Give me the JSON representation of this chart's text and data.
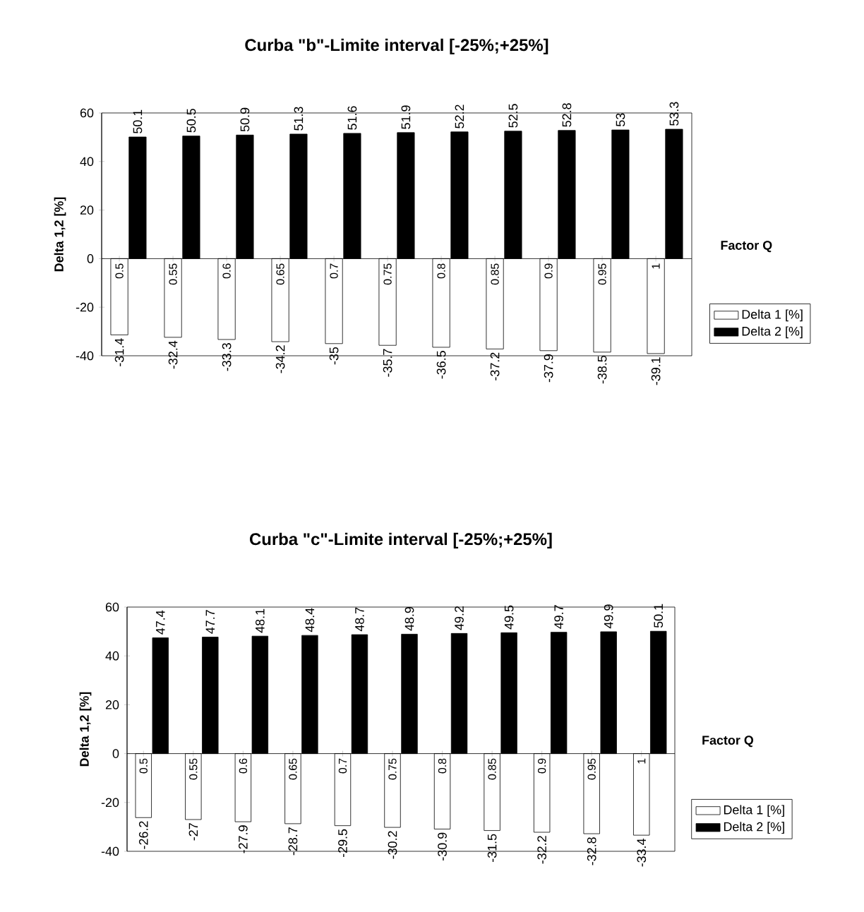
{
  "chart_data": [
    {
      "type": "bar",
      "title": "Curba \"b\"-Limite interval [-25%;+25%]",
      "xlabel": "Factor Q",
      "ylabel": "Delta 1,2 [%]",
      "categories": [
        "0.5",
        "0.55",
        "0.6",
        "0.65",
        "0.7",
        "0.75",
        "0.8",
        "0.85",
        "0.9",
        "0.95",
        "1"
      ],
      "series": [
        {
          "name": "Delta 1 [%]",
          "color": "#ffffff",
          "values": [
            -31.4,
            -32.4,
            -33.3,
            -34.2,
            -35,
            -35.7,
            -36.5,
            -37.2,
            -37.9,
            -38.5,
            -39.1
          ]
        },
        {
          "name": "Delta 2 [%]",
          "color": "#000000",
          "values": [
            50.1,
            50.5,
            50.9,
            51.3,
            51.6,
            51.9,
            52.2,
            52.5,
            52.8,
            53,
            53.3
          ]
        }
      ],
      "ylim": [
        -40,
        60
      ],
      "yticks": [
        -40,
        -20,
        0,
        20,
        40,
        60
      ],
      "data_labels": true,
      "legend": "right"
    },
    {
      "type": "bar",
      "title": "Curba \"c\"-Limite interval [-25%;+25%]",
      "xlabel": "Factor Q",
      "ylabel": "Delta 1,2 [%]",
      "categories": [
        "0.5",
        "0.55",
        "0.6",
        "0.65",
        "0.7",
        "0.75",
        "0.8",
        "0.85",
        "0.9",
        "0.95",
        "1"
      ],
      "series": [
        {
          "name": "Delta 1 [%]",
          "color": "#ffffff",
          "values": [
            -26.2,
            -27,
            -27.9,
            -28.7,
            -29.5,
            -30.2,
            -30.9,
            -31.5,
            -32.2,
            -32.8,
            -33.4
          ]
        },
        {
          "name": "Delta 2 [%]",
          "color": "#000000",
          "values": [
            47.4,
            47.7,
            48.1,
            48.4,
            48.7,
            48.9,
            49.2,
            49.5,
            49.7,
            49.9,
            50.1
          ]
        }
      ],
      "ylim": [
        -40,
        60
      ],
      "yticks": [
        -40,
        -20,
        0,
        20,
        40,
        60
      ],
      "data_labels": true,
      "legend": "right"
    }
  ]
}
